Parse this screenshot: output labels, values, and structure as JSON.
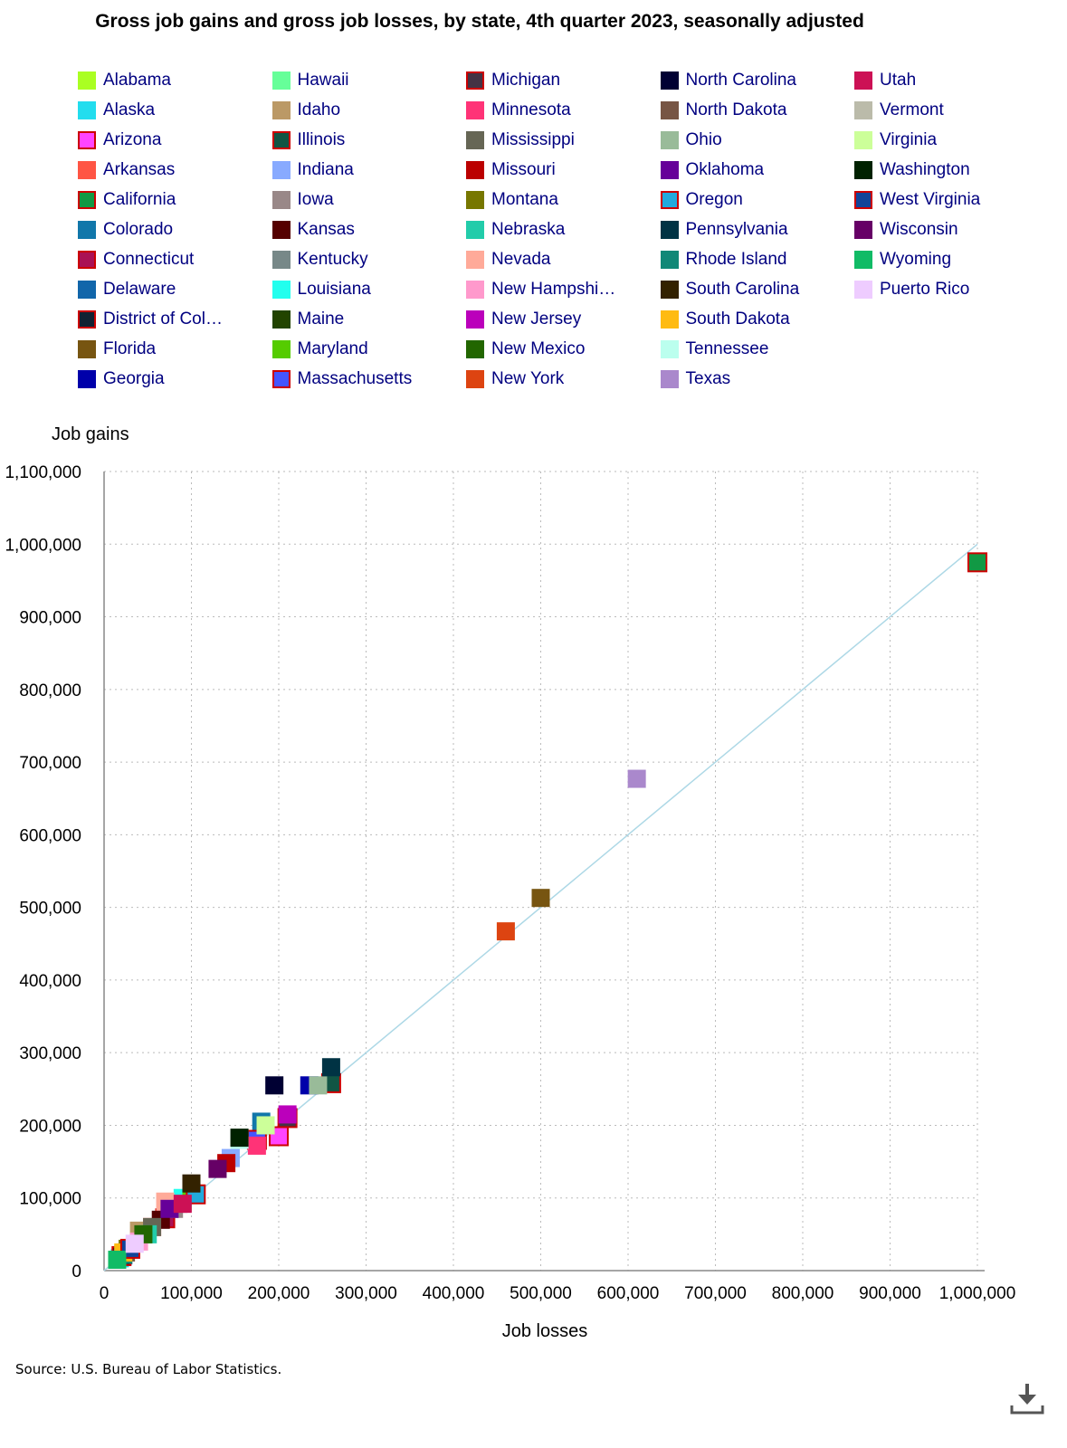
{
  "chart_data": {
    "type": "scatter",
    "title": "Gross job gains and gross job losses, by state, 4th quarter 2023, seasonally adjusted",
    "xlabel": "Job losses",
    "ylabel": "Job gains",
    "xlim": [
      0,
      1000000
    ],
    "ylim": [
      0,
      1100000
    ],
    "x_ticks": [
      "0",
      "100,000",
      "200,000",
      "300,000",
      "400,000",
      "500,000",
      "600,000",
      "700,000",
      "800,000",
      "900,000",
      "1,000,000"
    ],
    "y_ticks": [
      "0",
      "100,000",
      "200,000",
      "300,000",
      "400,000",
      "500,000",
      "600,000",
      "700,000",
      "800,000",
      "900,000",
      "1,000,000",
      "1,100,000"
    ],
    "grid": true,
    "legend_position": "top",
    "reference_line": {
      "from": [
        0,
        0
      ],
      "to": [
        1000000,
        1000000
      ],
      "color": "#add8e6"
    },
    "series": [
      {
        "name": "Alabama",
        "color": "#aaff22",
        "border": "",
        "x": 90000,
        "y": 95000
      },
      {
        "name": "Alaska",
        "color": "#22ddee",
        "border": "",
        "x": 18000,
        "y": 17000
      },
      {
        "name": "Arizona",
        "color": "#ff44ff",
        "border": "#cc0000",
        "x": 200000,
        "y": 185000
      },
      {
        "name": "Arkansas",
        "color": "#ff5544",
        "border": "",
        "x": 55000,
        "y": 60000
      },
      {
        "name": "California",
        "color": "#119944",
        "border": "#cc0000",
        "x": 1000000,
        "y": 975000
      },
      {
        "name": "Colorado",
        "color": "#1177aa",
        "border": "",
        "x": 180000,
        "y": 205000
      },
      {
        "name": "Connecticut",
        "color": "#aa1155",
        "border": "#cc0000",
        "x": 70000,
        "y": 72000
      },
      {
        "name": "Delaware",
        "color": "#1166aa",
        "border": "",
        "x": 22000,
        "y": 21000
      },
      {
        "name": "District of Col…",
        "color": "#112233",
        "border": "#cc0000",
        "x": 20000,
        "y": 20000
      },
      {
        "name": "Florida",
        "color": "#775511",
        "border": "",
        "x": 500000,
        "y": 513000
      },
      {
        "name": "Georgia",
        "color": "#0000aa",
        "border": "",
        "x": 235000,
        "y": 255000
      },
      {
        "name": "Hawaii",
        "color": "#66ff99",
        "border": "",
        "x": 30000,
        "y": 30000
      },
      {
        "name": "Idaho",
        "color": "#bb9966",
        "border": "",
        "x": 40000,
        "y": 55000
      },
      {
        "name": "Illinois",
        "color": "#115544",
        "border": "#cc0000",
        "x": 260000,
        "y": 258000
      },
      {
        "name": "Indiana",
        "color": "#88aaff",
        "border": "",
        "x": 145000,
        "y": 155000
      },
      {
        "name": "Iowa",
        "color": "#998888",
        "border": "",
        "x": 80000,
        "y": 85000
      },
      {
        "name": "Kansas",
        "color": "#550000",
        "border": "",
        "x": 65000,
        "y": 70000
      },
      {
        "name": "Kentucky",
        "color": "#778888",
        "border": "",
        "x": 85000,
        "y": 92000
      },
      {
        "name": "Louisiana",
        "color": "#22ffee",
        "border": "",
        "x": 90000,
        "y": 100000
      },
      {
        "name": "Maine",
        "color": "#224400",
        "border": "",
        "x": 30000,
        "y": 30000
      },
      {
        "name": "Maryland",
        "color": "#55cc00",
        "border": "",
        "x": 100000,
        "y": 110000
      },
      {
        "name": "Massachusetts",
        "color": "#4455ff",
        "border": "#cc0000",
        "x": 175000,
        "y": 180000
      },
      {
        "name": "Michigan",
        "color": "#443344",
        "border": "#cc0000",
        "x": 210000,
        "y": 210000
      },
      {
        "name": "Minnesota",
        "color": "#ff3377",
        "border": "",
        "x": 175000,
        "y": 172000
      },
      {
        "name": "Mississippi",
        "color": "#666655",
        "border": "",
        "x": 55000,
        "y": 60000
      },
      {
        "name": "Missouri",
        "color": "#bb0000",
        "border": "",
        "x": 140000,
        "y": 148000
      },
      {
        "name": "Montana",
        "color": "#777700",
        "border": "",
        "x": 27000,
        "y": 30000
      },
      {
        "name": "Nebraska",
        "color": "#22ccaa",
        "border": "",
        "x": 50000,
        "y": 50000
      },
      {
        "name": "Nevada",
        "color": "#ffaa99",
        "border": "",
        "x": 70000,
        "y": 95000
      },
      {
        "name": "New Hampshi…",
        "color": "#ff99cc",
        "border": "",
        "x": 40000,
        "y": 40000
      },
      {
        "name": "New Jersey",
        "color": "#bb00bb",
        "border": "",
        "x": 210000,
        "y": 215000
      },
      {
        "name": "New Mexico",
        "color": "#226600",
        "border": "",
        "x": 45000,
        "y": 50000
      },
      {
        "name": "New York",
        "color": "#dd4411",
        "border": "",
        "x": 460000,
        "y": 467000
      },
      {
        "name": "North Carolina",
        "color": "#000033",
        "border": "",
        "x": 195000,
        "y": 255000
      },
      {
        "name": "North Dakota",
        "color": "#775544",
        "border": "",
        "x": 25000,
        "y": 25000
      },
      {
        "name": "Ohio",
        "color": "#99bb99",
        "border": "",
        "x": 245000,
        "y": 255000
      },
      {
        "name": "Oklahoma",
        "color": "#660099",
        "border": "",
        "x": 75000,
        "y": 85000
      },
      {
        "name": "Oregon",
        "color": "#22aadd",
        "border": "#cc0000",
        "x": 105000,
        "y": 105000
      },
      {
        "name": "Pennsylvania",
        "color": "#003344",
        "border": "",
        "x": 260000,
        "y": 280000
      },
      {
        "name": "Rhode Island",
        "color": "#118877",
        "border": "",
        "x": 22000,
        "y": 22000
      },
      {
        "name": "South Carolina",
        "color": "#332200",
        "border": "",
        "x": 100000,
        "y": 120000
      },
      {
        "name": "South Dakota",
        "color": "#ffbb11",
        "border": "",
        "x": 22000,
        "y": 25000
      },
      {
        "name": "Tennessee",
        "color": "#bbffee",
        "border": "",
        "x": 155000,
        "y": 180000
      },
      {
        "name": "Texas",
        "color": "#aa88cc",
        "border": "",
        "x": 610000,
        "y": 677000
      },
      {
        "name": "Utah",
        "color": "#cc1155",
        "border": "",
        "x": 90000,
        "y": 92000
      },
      {
        "name": "Vermont",
        "color": "#bbbbaa",
        "border": "",
        "x": 15000,
        "y": 15000
      },
      {
        "name": "Virginia",
        "color": "#ccff99",
        "border": "",
        "x": 185000,
        "y": 200000
      },
      {
        "name": "Washington",
        "color": "#002200",
        "border": "",
        "x": 155000,
        "y": 183000
      },
      {
        "name": "West Virginia",
        "color": "#114499",
        "border": "#cc0000",
        "x": 30000,
        "y": 30000
      },
      {
        "name": "Wisconsin",
        "color": "#660066",
        "border": "",
        "x": 130000,
        "y": 140000
      },
      {
        "name": "Wyoming",
        "color": "#11bb66",
        "border": "",
        "x": 15000,
        "y": 15000
      },
      {
        "name": "Puerto Rico",
        "color": "#eeccff",
        "border": "",
        "x": 35000,
        "y": 37000
      }
    ]
  },
  "source": "Source: U.S. Bureau of Labor Statistics.",
  "toolbar": {
    "download_icon": "download-icon"
  }
}
